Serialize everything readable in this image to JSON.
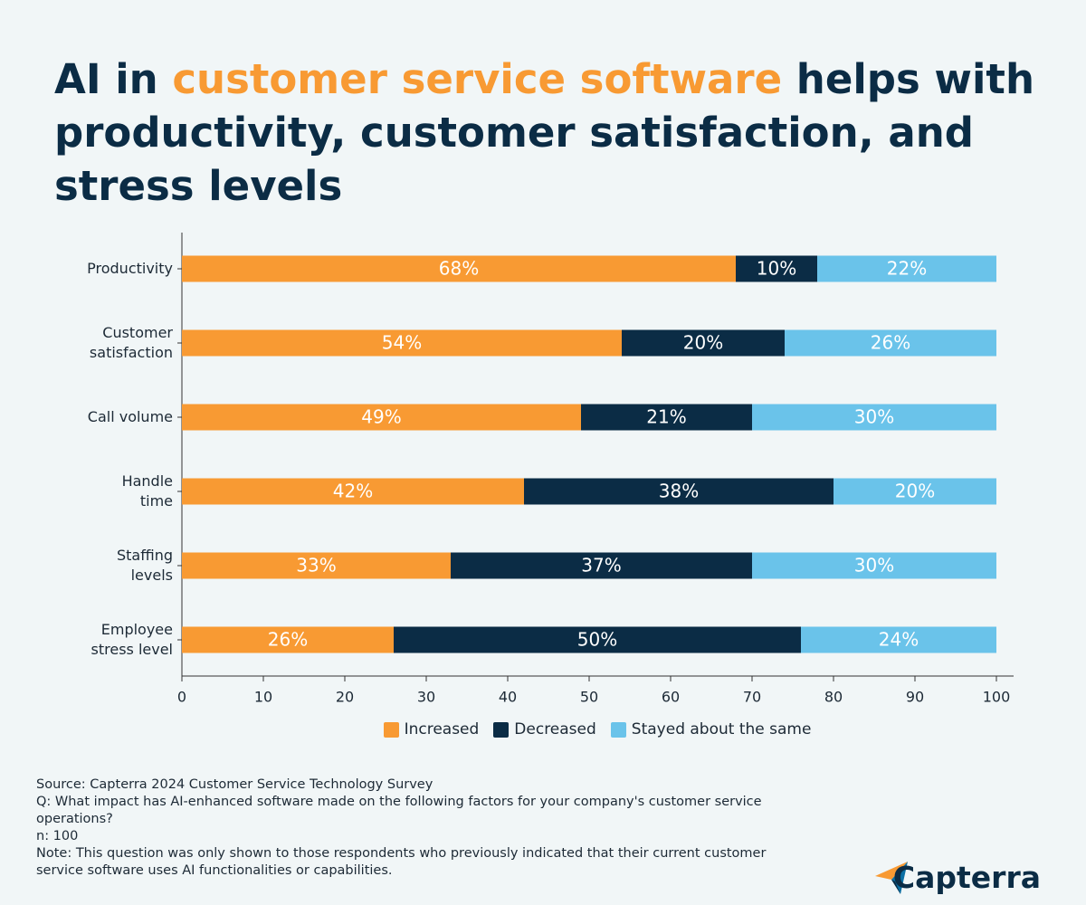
{
  "chart_data": {
    "type": "stacked-bar-horizontal",
    "title": [
      "AI in ",
      "customer service software",
      " helps with productivity, customer satisfaction, and stress levels"
    ],
    "title_color": "#0b2c45",
    "title_highlight_color": "#f89a33",
    "categories": [
      "Productivity",
      "Customer\nsatisfaction",
      "Call volume",
      "Handle\ntime",
      "Staffing\nlevels",
      "Employee\nstress level"
    ],
    "series": [
      {
        "name": "Increased",
        "color": "#f89a33",
        "values": [
          68,
          54,
          49,
          42,
          33,
          26
        ],
        "value_labels": [
          "68%",
          "54%",
          "49%",
          "42%",
          "33%",
          "26%"
        ]
      },
      {
        "name": "Decreased",
        "color": "#0b2c45",
        "values": [
          10,
          20,
          21,
          38,
          37,
          50
        ],
        "value_labels": [
          "10%",
          "20%",
          "21%",
          "38%",
          "37%",
          "50%"
        ]
      },
      {
        "name": "Stayed about the same",
        "color": "#6ac3ea",
        "values": [
          22,
          26,
          30,
          20,
          30,
          24
        ],
        "value_labels": [
          "22%",
          "26%",
          "30%",
          "20%",
          "30%",
          "24%"
        ]
      }
    ],
    "xlim": [
      0,
      100
    ],
    "xticks": [
      0,
      10,
      20,
      30,
      40,
      50,
      60,
      70,
      80,
      90,
      100
    ],
    "legend": "bottom",
    "notes": [
      "Source: Capterra 2024 Customer Service Technology Survey",
      "Q: What impact has AI-enhanced software made on the following factors for your company's customer service operations?",
      "n: 100",
      "Note: This question was only shown to those respondents who previously indicated that their current customer service software uses AI functionalities or capabilities."
    ],
    "brand": "Capterra"
  }
}
